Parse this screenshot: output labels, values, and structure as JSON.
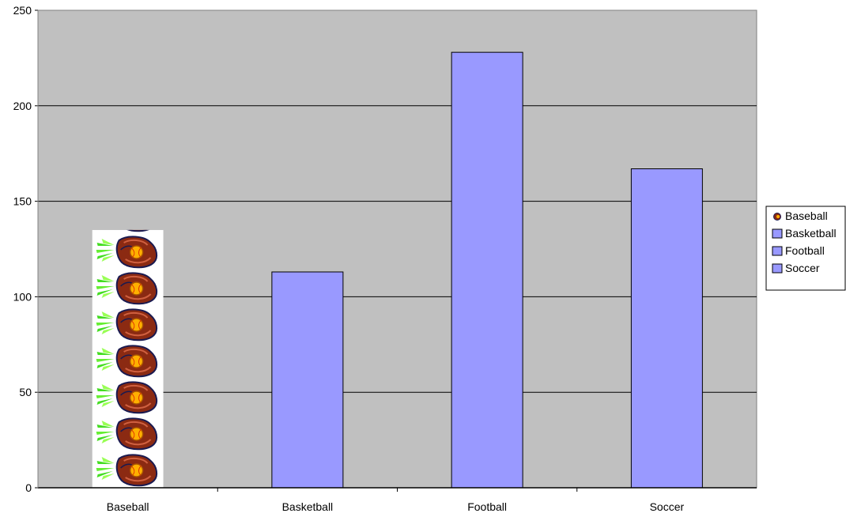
{
  "chart_data": {
    "type": "bar",
    "categories": [
      "Baseball",
      "Basketball",
      "Football",
      "Soccer"
    ],
    "values": [
      135,
      113,
      228,
      167
    ],
    "ylim": [
      0,
      250
    ],
    "yticks": [
      0,
      50,
      100,
      150,
      200,
      250
    ],
    "grid": true,
    "legend_position": "right",
    "legend": [
      "Baseball",
      "Basketball",
      "Football",
      "Soccer"
    ],
    "bar_color": "#9999ff",
    "plot_background": "#c0c0c0",
    "baseball_bar_fill": "pictograph of baseball glove icons"
  }
}
